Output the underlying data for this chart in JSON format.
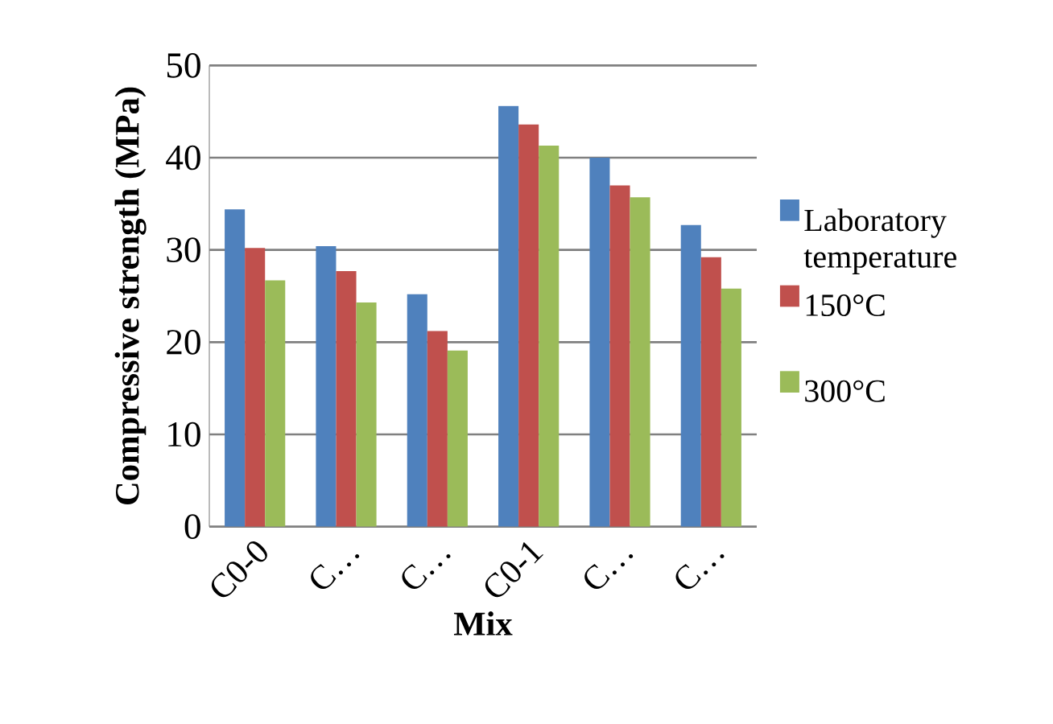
{
  "chart_data": {
    "type": "bar",
    "xlabel": "Mix",
    "ylabel": "Compressive strength (MPa)",
    "categories": [
      "C0-0",
      "C…",
      "C…",
      "C0-1",
      "C…",
      "C…"
    ],
    "series": [
      {
        "name": "Laboratory temperature",
        "color": "#4f81bd",
        "values": [
          34.4,
          30.4,
          25.2,
          45.6,
          40.0,
          32.7
        ]
      },
      {
        "name": "150°C",
        "color": "#c0504d",
        "values": [
          30.2,
          27.7,
          21.2,
          43.6,
          37.0,
          29.2
        ]
      },
      {
        "name": "300°C",
        "color": "#9bbb59",
        "values": [
          26.7,
          24.3,
          19.1,
          41.3,
          35.7,
          25.8
        ]
      }
    ],
    "ylim": [
      0,
      50
    ],
    "yticks": [
      0,
      10,
      20,
      30,
      40,
      50
    ],
    "grid": "y",
    "legend": "right"
  }
}
